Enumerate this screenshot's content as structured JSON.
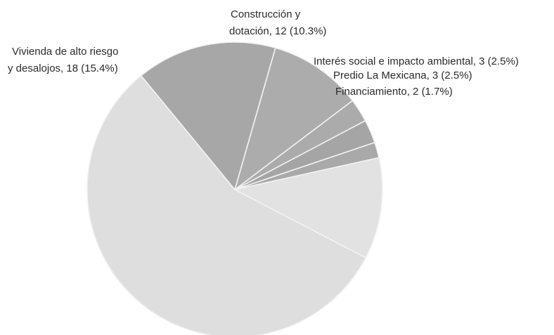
{
  "chart_data": {
    "type": "pie",
    "title": "",
    "start_angle_deg": 12.5,
    "direction": "clockwise",
    "slices": [
      {
        "label": "Financiamiento, 2 (1.7%)",
        "value": 2,
        "percent": 1.7,
        "color": "#a9a9a9"
      },
      {
        "label": "Predio La Mexicana, 3 (2.5%)",
        "value": 3,
        "percent": 2.5,
        "color": "#a5a5a5"
      },
      {
        "label": "Interés social e impacto ambiental, 3 (2.5%)",
        "value": 3,
        "percent": 2.5,
        "color": "#ababab"
      },
      {
        "label": "Construcción y dotación, 12 (10.3%)",
        "value": 12,
        "percent": 10.3,
        "color": "#acacac"
      },
      {
        "label": "Vivienda de alto riesgo y desalojos, 18 (15.4%)",
        "value": 18,
        "percent": 15.4,
        "color": "#a7a7a7"
      },
      {
        "label": "",
        "value": 66,
        "percent": 56.4,
        "color": "#dedede"
      },
      {
        "label": "",
        "value": 13,
        "percent": 11.1,
        "color": "#e2e2e2"
      }
    ],
    "labels": {
      "vivienda": [
        "Vivienda de alto riesgo",
        "y desalojos, 18 (15.4%)"
      ],
      "construccion": [
        "Construcción y",
        "dotación, 12 (10.3%)"
      ],
      "interes": [
        "Interés social e impacto ambiental, 3 (2.5%)"
      ],
      "predio": [
        "Predio La Mexicana, 3 (2.5%)"
      ],
      "financiamiento": [
        "Financiamiento, 2 (1.7%)"
      ]
    }
  }
}
